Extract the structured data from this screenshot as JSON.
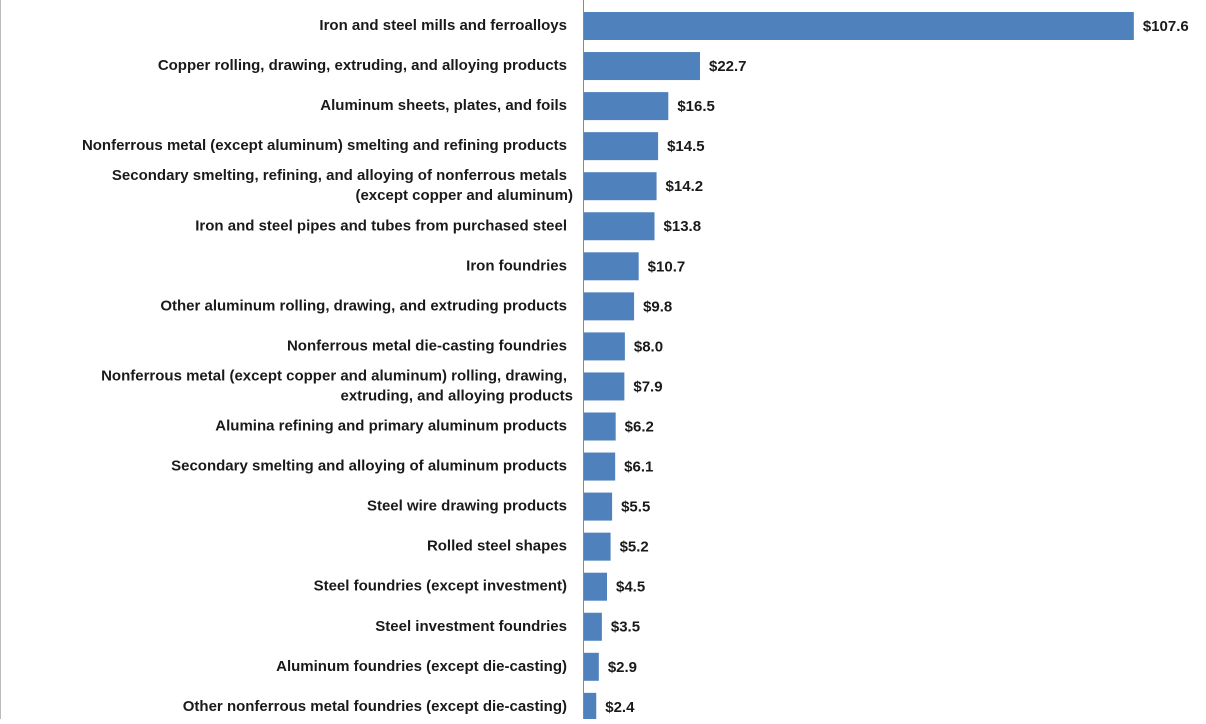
{
  "chart_data": {
    "type": "bar",
    "orientation": "horizontal",
    "color": "#4f81bd",
    "categories": [
      "Iron and steel mills and ferroalloys",
      "Copper rolling, drawing, extruding, and alloying products",
      "Aluminum sheets, plates, and foils",
      "Nonferrous metal (except aluminum) smelting and refining products",
      "Secondary smelting, refining, and alloying of nonferrous metals\n(except copper and aluminum)",
      "Iron and steel pipes and tubes from purchased steel",
      "Iron foundries",
      "Other aluminum rolling, drawing, and extruding products",
      "Nonferrous metal die-casting foundries",
      "Nonferrous metal (except copper and aluminum) rolling, drawing,\nextruding, and alloying products",
      "Alumina refining and primary aluminum products",
      "Secondary smelting and alloying of aluminum products",
      "Steel wire drawing products",
      "Rolled steel shapes",
      "Steel foundries (except investment)",
      "Steel investment foundries",
      "Aluminum foundries (except die-casting)",
      "Other nonferrous metal foundries (except die-casting)"
    ],
    "values": [
      107.6,
      22.7,
      16.5,
      14.5,
      14.2,
      13.8,
      10.7,
      9.8,
      8.0,
      7.9,
      6.2,
      6.1,
      5.5,
      5.2,
      4.5,
      3.5,
      2.9,
      2.4
    ],
    "value_labels": [
      "$107.6",
      "$22.7",
      "$16.5",
      "$14.5",
      "$14.2",
      "$13.8",
      "$10.7",
      "$9.8",
      "$8.0",
      "$7.9",
      "$6.2",
      "$6.1",
      "$5.5",
      "$5.2",
      "$4.5",
      "$3.5",
      "$2.9",
      "$2.4"
    ]
  }
}
